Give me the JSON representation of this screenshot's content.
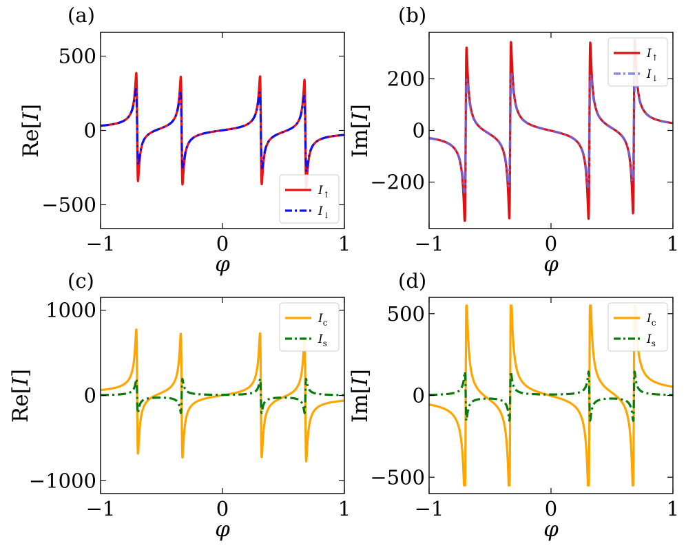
{
  "chart_data": [
    {
      "type": "line",
      "panel": "(a)",
      "ylabel_prefix": "Re[",
      "ylabel_var": "I",
      "ylabel_suffix": "]",
      "xlabel": "φ",
      "xlim": [
        -1,
        1
      ],
      "ylim": [
        -660,
        660
      ],
      "xticks": [
        -1,
        0,
        1
      ],
      "xtick_labels": [
        "−1",
        "0",
        "1"
      ],
      "yticks": [
        -500,
        0,
        500
      ],
      "ytick_labels": [
        "−500",
        "0",
        "500"
      ],
      "legend_position": "lower-right",
      "series": [
        {
          "name": "I",
          "sub": "↑",
          "color": "#ee1111",
          "dash": "solid",
          "width": 3.2,
          "opacity": 1,
          "model": "real",
          "poles": [
            -0.7,
            -0.335,
            0.315,
            0.68
          ],
          "strength": 8.5,
          "width_param": 0.007,
          "amp_cap": 610
        },
        {
          "name": "I",
          "sub": "↓",
          "color": "#1111ee",
          "dash": "dash",
          "width": 3.2,
          "opacity": 1,
          "model": "real",
          "poles": [
            -0.7,
            -0.335,
            0.315,
            0.68
          ],
          "strength": 8.5,
          "width_param": 0.01,
          "amp_cap": 440
        }
      ]
    },
    {
      "type": "line",
      "panel": "(b)",
      "ylabel_prefix": "Im[",
      "ylabel_var": "I",
      "ylabel_suffix": "]",
      "xlabel": "φ",
      "xlim": [
        -1,
        1
      ],
      "ylim": [
        -380,
        380
      ],
      "xticks": [
        -1,
        0,
        1
      ],
      "xtick_labels": [
        "−1",
        "0",
        "1"
      ],
      "yticks": [
        -200,
        0,
        200
      ],
      "ytick_labels": [
        "−200",
        "0",
        "200"
      ],
      "legend_position": "top-right",
      "series": [
        {
          "name": "I",
          "sub": "↑",
          "color": "#dd1111",
          "dash": "solid",
          "width": 3.2,
          "opacity": 1,
          "model": "imag",
          "poles": [
            -0.7,
            -0.335,
            0.315,
            0.68
          ],
          "strength": 8.0,
          "width_param": 0.007,
          "amp_cap": 350
        },
        {
          "name": "I",
          "sub": "↓",
          "color": "#6a6ae8",
          "dash": "dash",
          "width": 3.6,
          "opacity": 0.8,
          "model": "imag",
          "poles": [
            -0.7,
            -0.335,
            0.315,
            0.68
          ],
          "strength": 8.0,
          "width_param": 0.011,
          "amp_cap": 265
        }
      ]
    },
    {
      "type": "line",
      "panel": "(c)",
      "ylabel_prefix": "Re[",
      "ylabel_var": "I",
      "ylabel_suffix": "]",
      "xlabel": "φ",
      "xlim": [
        -1,
        1
      ],
      "ylim": [
        -1150,
        1150
      ],
      "xticks": [
        -1,
        0,
        1
      ],
      "xtick_labels": [
        "−1",
        "0",
        "1"
      ],
      "yticks": [
        -1000,
        0,
        1000
      ],
      "ytick_labels": [
        "−1000",
        "0",
        "1000"
      ],
      "legend_position": "top-right",
      "series": [
        {
          "name": "I",
          "sub": "c",
          "color": "#ffa500",
          "dash": "solid",
          "width": 3.2,
          "opacity": 1,
          "model": "real",
          "poles": [
            -0.7,
            -0.335,
            0.315,
            0.68
          ],
          "strength": 17.0,
          "width_param": 0.007,
          "amp_cap": 1050
        },
        {
          "name": "I",
          "sub": "s",
          "color": "#0a7a0a",
          "dash": "dash",
          "width": 3.2,
          "opacity": 1,
          "model": "spin",
          "poles": [
            -0.7,
            -0.335,
            0.315,
            0.68
          ],
          "strength": 4.0,
          "width_param": 0.006,
          "amp_cap": 400
        }
      ]
    },
    {
      "type": "line",
      "panel": "(d)",
      "ylabel_prefix": "Im[",
      "ylabel_var": "I",
      "ylabel_suffix": "]",
      "xlabel": "φ",
      "xlim": [
        -1,
        1
      ],
      "ylim": [
        -600,
        600
      ],
      "xticks": [
        -1,
        0,
        1
      ],
      "xtick_labels": [
        "−1",
        "0",
        "1"
      ],
      "yticks": [
        -500,
        0,
        500
      ],
      "ytick_labels": [
        "−500",
        "0",
        "500"
      ],
      "legend_position": "top-right",
      "series": [
        {
          "name": "I",
          "sub": "c",
          "color": "#ffa500",
          "dash": "solid",
          "width": 3.2,
          "opacity": 1,
          "model": "imag",
          "poles": [
            -0.7,
            -0.335,
            0.315,
            0.68
          ],
          "strength": 15.0,
          "width_param": 0.007,
          "amp_cap": 550
        },
        {
          "name": "I",
          "sub": "s",
          "color": "#0a7a0a",
          "dash": "dash",
          "width": 3.2,
          "opacity": 1,
          "model": "spin",
          "poles": [
            -0.7,
            -0.335,
            0.315,
            0.68
          ],
          "strength": 3.0,
          "width_param": 0.006,
          "amp_cap": 280
        }
      ]
    }
  ]
}
